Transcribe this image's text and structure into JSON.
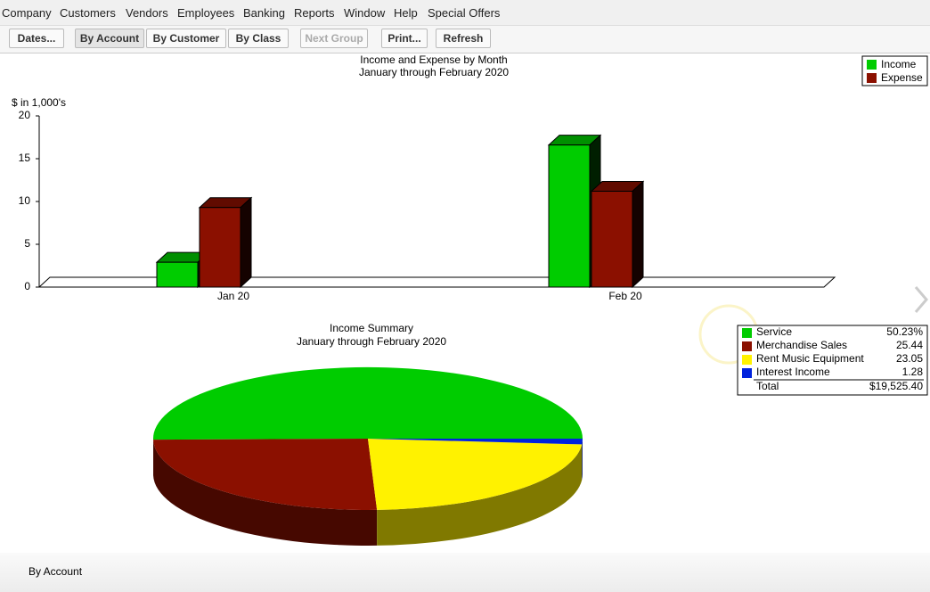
{
  "menu": [
    "Company",
    "Customers",
    "Vendors",
    "Employees",
    "Banking",
    "Reports",
    "Window",
    "Help",
    "Special Offers"
  ],
  "toolbar": [
    "Dates...",
    "By Account",
    "By Customer",
    "By Class",
    "Next Group",
    "Print...",
    "Refresh"
  ],
  "footer": "By Account",
  "chart_data": [
    {
      "type": "bar",
      "title": "Income and Expense by Month",
      "subtitle": "January through February 2020",
      "y_label": "$ in 1,000's",
      "categories": [
        "Jan 20",
        "Feb 20"
      ],
      "series": [
        {
          "name": "Income",
          "color": "#00cc00",
          "values": [
            2.9,
            16.6
          ]
        },
        {
          "name": "Expense",
          "color": "#8b1000",
          "values": [
            9.3,
            11.2
          ]
        }
      ],
      "ylim": [
        0,
        20
      ],
      "yticks": [
        0,
        5,
        10,
        15,
        20
      ],
      "legend": "upper right"
    },
    {
      "type": "pie",
      "title": "Income Summary",
      "subtitle": "January through February 2020",
      "categories": [
        "Service",
        "Merchandise Sales",
        "Rent Music Equipment",
        "Interest Income"
      ],
      "values": [
        50.23,
        25.44,
        23.05,
        1.28
      ],
      "value_labels": [
        "50.23%",
        "25.44",
        "23.05",
        "1.28"
      ],
      "colors": [
        "#00cc00",
        "#8b1000",
        "#fff200",
        "#0022dd"
      ],
      "total_label": "Total",
      "total": "$19,525.40"
    }
  ]
}
